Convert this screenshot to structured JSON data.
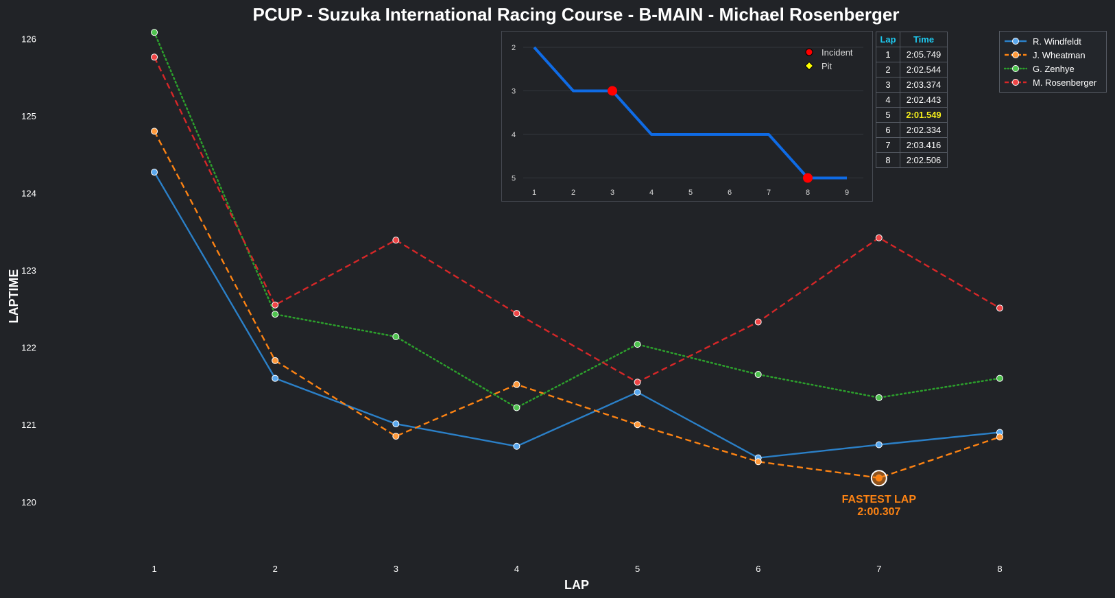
{
  "chart_data": [
    {
      "type": "line",
      "title": "PCUP - Suzuka International Racing Course - B-MAIN - Michael Rosenberger",
      "xlabel": "LAP",
      "ylabel": "LAPTIME",
      "x": [
        1,
        2,
        3,
        4,
        5,
        6,
        7,
        8
      ],
      "xlim": [
        0.5,
        8.5
      ],
      "ylim": [
        119.35,
        126.1
      ],
      "yticks": [
        120,
        121,
        122,
        123,
        124,
        125,
        126
      ],
      "legend_position": "top-right",
      "series": [
        {
          "name": "R. Windfeldt",
          "color": "#2b80c8",
          "style": "solid",
          "values": [
            124.27,
            121.6,
            121.01,
            120.72,
            121.42,
            120.57,
            120.74,
            120.9
          ]
        },
        {
          "name": "J. Wheatman",
          "color": "#fd8313",
          "style": "dashed",
          "values": [
            124.8,
            121.83,
            120.85,
            121.52,
            121.0,
            120.52,
            120.31,
            120.84
          ]
        },
        {
          "name": "G. Zenhye",
          "color": "#2ca02c",
          "style": "dotted",
          "values": [
            126.08,
            122.43,
            122.14,
            121.22,
            122.04,
            121.65,
            121.35,
            121.6
          ]
        },
        {
          "name": "M. Rosenberger",
          "color": "#d62728",
          "style": "dashed",
          "values": [
            125.76,
            122.55,
            123.39,
            122.44,
            121.55,
            122.33,
            123.42,
            122.51
          ]
        }
      ],
      "annotation": {
        "series": "J. Wheatman",
        "x": 7,
        "y": 120.307,
        "line1": "FASTEST LAP",
        "line2": "2:00.307",
        "color": "#fd8313"
      }
    },
    {
      "type": "line",
      "x": [
        1,
        2,
        3,
        4,
        5,
        6,
        7,
        8,
        9
      ],
      "positions": [
        2,
        3,
        3,
        4,
        4,
        4,
        4,
        5,
        5
      ],
      "y_inverted": true,
      "yticks": [
        2,
        3,
        4,
        5
      ],
      "color": "#0f6be5",
      "incidents": [
        3,
        8
      ],
      "pits": [],
      "legend": [
        {
          "label": "Incident",
          "marker": "circle",
          "color": "#ff0000"
        },
        {
          "label": "Pit",
          "marker": "diamond",
          "color": "#ffff00"
        }
      ]
    },
    {
      "type": "table",
      "columns": [
        "Lap",
        "Time"
      ],
      "rows": [
        [
          "1",
          "2:05.749"
        ],
        [
          "2",
          "2:02.544"
        ],
        [
          "3",
          "2:03.374"
        ],
        [
          "4",
          "2:02.443"
        ],
        [
          "5",
          "2:01.549"
        ],
        [
          "6",
          "2:02.334"
        ],
        [
          "7",
          "2:03.416"
        ],
        [
          "8",
          "2:02.506"
        ]
      ],
      "best_row": 4,
      "header_color": "#1ec8ee",
      "best_color": "#f5ee1b"
    }
  ]
}
